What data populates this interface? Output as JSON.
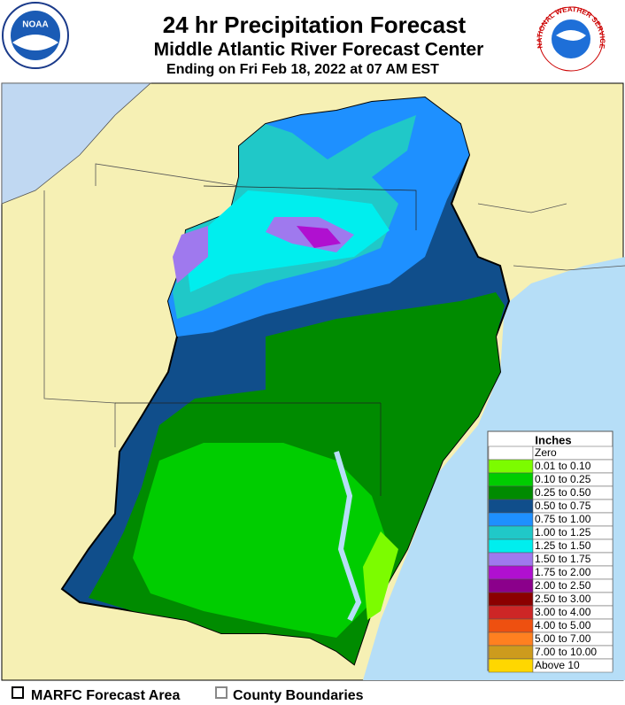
{
  "header": {
    "title": "24 hr Precipitation Forecast",
    "subtitle": "Middle Atlantic River Forecast Center",
    "date": "Ending on Fri Feb 18, 2022 at 07 AM EST"
  },
  "logos": {
    "noaa": "NOAA",
    "nws": "NATIONAL WEATHER SERVICE"
  },
  "legend": {
    "title": "Inches",
    "items": [
      {
        "label": "Zero",
        "color": "#ffffff"
      },
      {
        "label": "0.01 to 0.10",
        "color": "#7cfc00"
      },
      {
        "label": "0.10 to 0.25",
        "color": "#00cd00"
      },
      {
        "label": "0.25 to 0.50",
        "color": "#008b00"
      },
      {
        "label": "0.50 to 0.75",
        "color": "#104e8b"
      },
      {
        "label": "0.75 to 1.00",
        "color": "#1e90ff"
      },
      {
        "label": "1.00 to 1.25",
        "color": "#20c8c8"
      },
      {
        "label": "1.25 to 1.50",
        "color": "#00eeee"
      },
      {
        "label": "1.50 to 1.75",
        "color": "#9f79ee"
      },
      {
        "label": "1.75 to 2.00",
        "color": "#b010d0"
      },
      {
        "label": "2.00 to 2.50",
        "color": "#8b008b"
      },
      {
        "label": "2.50 to 3.00",
        "color": "#8b0000"
      },
      {
        "label": "3.00 to 4.00",
        "color": "#cd2626"
      },
      {
        "label": "4.00 to 5.00",
        "color": "#ee5010"
      },
      {
        "label": "5.00 to 7.00",
        "color": "#ff8020"
      },
      {
        "label": "7.00 to 10.00",
        "color": "#cd9b1d"
      },
      {
        "label": "Above 10",
        "color": "#ffd700"
      }
    ]
  },
  "footer": {
    "items": [
      "MARFC Forecast Area",
      "County Boundaries"
    ]
  }
}
